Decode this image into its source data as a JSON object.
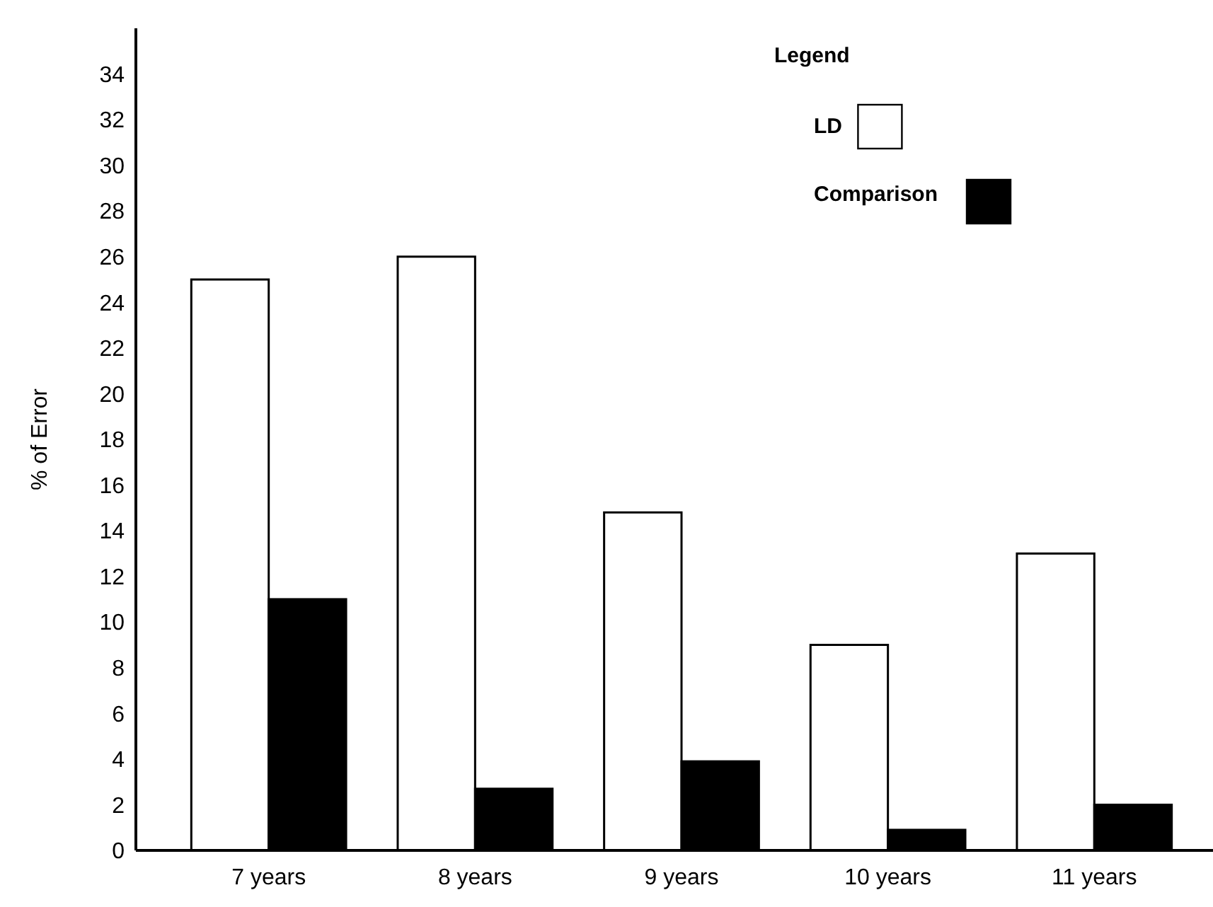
{
  "chart_data": {
    "type": "bar",
    "ylabel": "% of Error",
    "legend_title": "Legend",
    "legend": "top right",
    "categories": [
      "7 years",
      "8 years",
      "9 years",
      "10 years",
      "11 years"
    ],
    "series": [
      {
        "name": "LD",
        "color": "#ffffff",
        "values": [
          25,
          26,
          14.8,
          9,
          13
        ]
      },
      {
        "name": "Comparison",
        "color": "#000000",
        "values": [
          11,
          2.7,
          3.9,
          0.9,
          2
        ]
      }
    ],
    "ylim": [
      0,
      36
    ],
    "yticks": [
      0,
      2,
      4,
      6,
      8,
      10,
      12,
      14,
      16,
      18,
      20,
      22,
      24,
      26,
      28,
      30,
      32,
      34
    ]
  }
}
